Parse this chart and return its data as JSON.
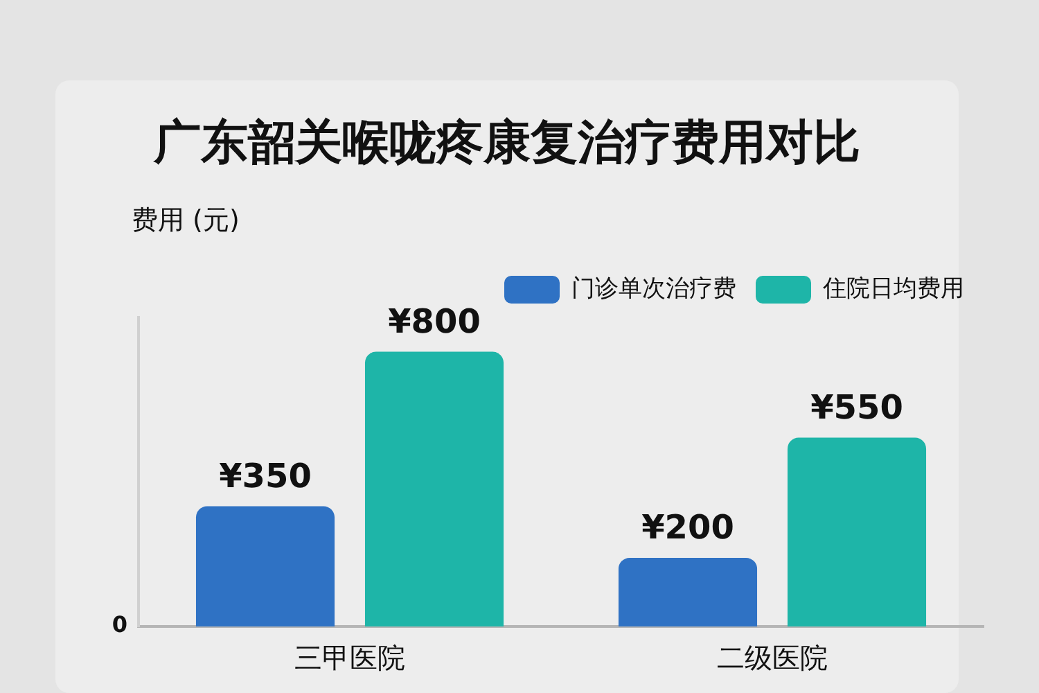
{
  "chart_data": {
    "type": "bar",
    "title": "广东韶关喉咙疼康复治疗费用对比",
    "ylabel": "费用 (元)",
    "categories": [
      "三甲医院",
      "二级医院"
    ],
    "series": [
      {
        "name": "门诊单次治疗费",
        "color": "#2f72c4",
        "values": [
          350,
          200
        ],
        "value_labels": [
          "¥350",
          "¥200"
        ]
      },
      {
        "name": "住院日均费用",
        "color": "#1eb5a8",
        "values": [
          800,
          550
        ],
        "value_labels": [
          "¥800",
          "¥550"
        ]
      }
    ],
    "annotations": [
      "0"
    ],
    "legend": "top right",
    "grid": false
  }
}
